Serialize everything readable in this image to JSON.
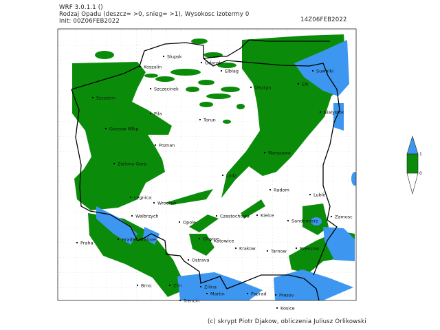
{
  "header": {
    "model": "WRF 3.0.1.1 ()",
    "title": "Rodzaj Opadu (deszcz= >0, snieg= >1), Wysokosc izotermy 0",
    "init": "Init: 00Z06FEB2022",
    "valid_time": "14Z06FEB2022"
  },
  "legend": {
    "labels": [
      "1",
      "0"
    ],
    "colors": {
      "snow": "#3d97f0",
      "rain": "#0a8c0a",
      "none": "#ffffff"
    }
  },
  "cities": [
    {
      "name": "Slupsk"
    },
    {
      "name": "Koszalin"
    },
    {
      "name": "Gdansk"
    },
    {
      "name": "Elblag"
    },
    {
      "name": "Suwalki"
    },
    {
      "name": "Szczecinek"
    },
    {
      "name": "Olsztyn"
    },
    {
      "name": "Elk"
    },
    {
      "name": "Szczecin"
    },
    {
      "name": "Bialystok"
    },
    {
      "name": "Pila"
    },
    {
      "name": "Torun"
    },
    {
      "name": "Gorzow Wlkp"
    },
    {
      "name": "Poznan"
    },
    {
      "name": "Warszawa"
    },
    {
      "name": "Zielona Gora"
    },
    {
      "name": "Lodz"
    },
    {
      "name": "Radom"
    },
    {
      "name": "Lublin"
    },
    {
      "name": "Legnica"
    },
    {
      "name": "Wroclaw"
    },
    {
      "name": "Walbrzych"
    },
    {
      "name": "Czestochowa"
    },
    {
      "name": "Kielce"
    },
    {
      "name": "Opole"
    },
    {
      "name": "Sandomierz"
    },
    {
      "name": "Zamosc"
    },
    {
      "name": "Gliwice"
    },
    {
      "name": "Katowice"
    },
    {
      "name": "Hradec Kralove"
    },
    {
      "name": "Praha"
    },
    {
      "name": "Krakow"
    },
    {
      "name": "Tarnow"
    },
    {
      "name": "Rzeszow"
    },
    {
      "name": "Ostrava"
    },
    {
      "name": "Brno"
    },
    {
      "name": "Zlin"
    },
    {
      "name": "Zilina"
    },
    {
      "name": "Martin"
    },
    {
      "name": "Poprad"
    },
    {
      "name": "Presov"
    },
    {
      "name": "Trencin"
    },
    {
      "name": "Kosice"
    }
  ],
  "footer": "(c) skrypt Piotr Djakow, obliczenia Juliusz Orlikowski"
}
